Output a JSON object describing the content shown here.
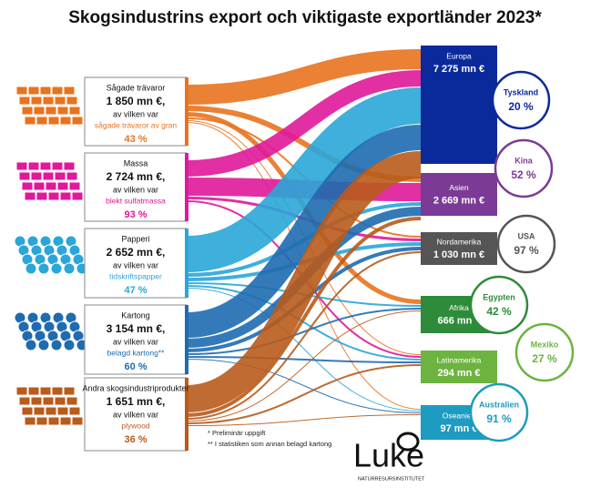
{
  "title": "Skogsindustrins export och viktigaste exportländer 2023*",
  "products": [
    {
      "name": "Sågade trävaror",
      "value": "1 850 mn €,",
      "sub": "av vilken var",
      "item": "sågade trävaror av gran",
      "share": "43 %",
      "color": "#e8731e"
    },
    {
      "name": "Massa",
      "value": "2 724 mn €,",
      "sub": "av vilken var",
      "item": "blekt sulfatmassa",
      "share": "93 %",
      "color": "#e0189a"
    },
    {
      "name": "Papperi",
      "value": "2 652 mn €,",
      "sub": "av vilken var",
      "item": "tidskriftspapper",
      "share": "47 %",
      "color": "#2aa6d8"
    },
    {
      "name": "Kartong",
      "value": "3 154 mn €,",
      "sub": "av vilken var",
      "item": "belagd kartong**",
      "share": "60 %",
      "color": "#1f6bb0"
    },
    {
      "name": "Andra skogsindustriprodukter",
      "value": "1 651 mn €,",
      "sub": "av vilken var",
      "item": "plywood",
      "share": "36 %",
      "color": "#b85b1c"
    }
  ],
  "regions": [
    {
      "name": "Europa",
      "value": "7 275 mn €",
      "color": "#0a2a9c",
      "country": "Tyskland",
      "share": "20 %"
    },
    {
      "name": "Asien",
      "value": "2 669 mn €",
      "color": "#7b3a96",
      "country": "Kina",
      "share": "52 %"
    },
    {
      "name": "Nordamerika",
      "value": "1 030 mn €",
      "color": "#555555",
      "country": "USA",
      "share": "97 %"
    },
    {
      "name": "Afrika",
      "value": "666 mn €",
      "color": "#2e8b3a",
      "country": "Egypten",
      "share": "42 %"
    },
    {
      "name": "Latinamerika",
      "value": "294 mn €",
      "color": "#6cb33f",
      "country": "Mexiko",
      "share": "27 %"
    },
    {
      "name": "Oseanien",
      "value": "97 mn €",
      "color": "#1e9bc0",
      "country": "Australien",
      "share": "91 %"
    }
  ],
  "notes": [
    "*  Preliminär uppgift",
    "** I statistiken som annan belagd kartong"
  ],
  "logo": {
    "name": "Luke",
    "sub": "NATURRESURSINSTITUTET"
  }
}
